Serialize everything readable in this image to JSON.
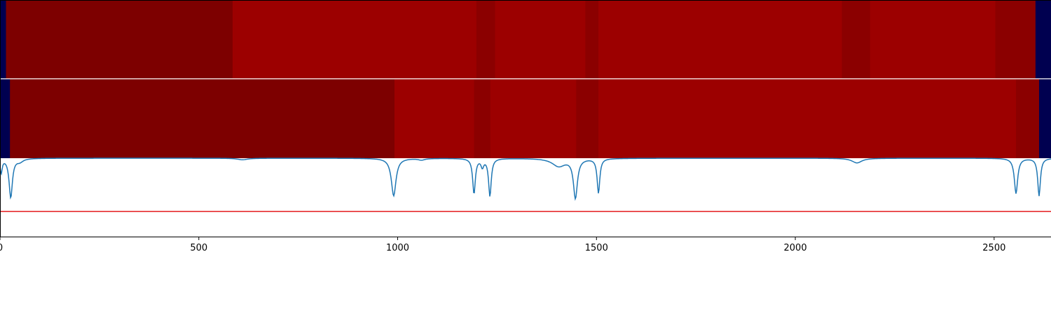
{
  "chart_data": [
    {
      "type": "heatmap",
      "segments": [
        {
          "x0": 0,
          "x1": 15,
          "level": "low"
        },
        {
          "x0": 15,
          "x1": 585,
          "level": "dark"
        },
        {
          "x0": 585,
          "x1": 1198,
          "level": "mid"
        },
        {
          "x0": 1198,
          "x1": 1245,
          "level": "darkmid"
        },
        {
          "x0": 1245,
          "x1": 1472,
          "level": "mid"
        },
        {
          "x0": 1472,
          "x1": 1505,
          "level": "darkmid"
        },
        {
          "x0": 1505,
          "x1": 2117,
          "level": "mid"
        },
        {
          "x0": 2117,
          "x1": 2188,
          "level": "darkmid"
        },
        {
          "x0": 2188,
          "x1": 2503,
          "level": "mid"
        },
        {
          "x0": 2503,
          "x1": 2604,
          "level": "darkmid"
        },
        {
          "x0": 2604,
          "x1": 2643,
          "level": "low"
        }
      ]
    },
    {
      "type": "heatmap",
      "segments": [
        {
          "x0": 0,
          "x1": 25,
          "level": "low"
        },
        {
          "x0": 25,
          "x1": 992,
          "level": "dark"
        },
        {
          "x0": 992,
          "x1": 1192,
          "level": "mid"
        },
        {
          "x0": 1192,
          "x1": 1233,
          "level": "darkmid"
        },
        {
          "x0": 1233,
          "x1": 1449,
          "level": "mid"
        },
        {
          "x0": 1449,
          "x1": 1505,
          "level": "darkmid"
        },
        {
          "x0": 1505,
          "x1": 2555,
          "level": "mid"
        },
        {
          "x0": 2555,
          "x1": 2613,
          "level": "darkmid"
        },
        {
          "x0": 2613,
          "x1": 2643,
          "level": "low"
        }
      ]
    },
    {
      "type": "line",
      "xlim": [
        0,
        2643
      ],
      "ylim": [
        0,
        1
      ],
      "grid": false,
      "x_ticks": [
        0,
        500,
        1000,
        1500,
        2000,
        2500
      ],
      "x_tick_labels": [
        "0",
        "500",
        "1000",
        "1500",
        "2000",
        "2500"
      ],
      "threshold": {
        "y": 0.32,
        "color": "#e41a1c"
      },
      "line_color": "#1f77b4",
      "baseline": 1.0,
      "dips": [
        {
          "x": 3,
          "depth": 0.18,
          "width": 6
        },
        {
          "x": 27,
          "depth": 0.5,
          "width": 10
        },
        {
          "x": 50,
          "depth": 0.04,
          "width": 20
        },
        {
          "x": 610,
          "depth": 0.02,
          "width": 30
        },
        {
          "x": 990,
          "depth": 0.48,
          "width": 14
        },
        {
          "x": 1060,
          "depth": 0.02,
          "width": 20
        },
        {
          "x": 1192,
          "depth": 0.45,
          "width": 8
        },
        {
          "x": 1213,
          "depth": 0.1,
          "width": 8
        },
        {
          "x": 1232,
          "depth": 0.48,
          "width": 8
        },
        {
          "x": 1405,
          "depth": 0.1,
          "width": 40
        },
        {
          "x": 1447,
          "depth": 0.5,
          "width": 12
        },
        {
          "x": 1505,
          "depth": 0.44,
          "width": 8
        },
        {
          "x": 2155,
          "depth": 0.06,
          "width": 30
        },
        {
          "x": 2555,
          "depth": 0.45,
          "width": 10
        },
        {
          "x": 2613,
          "depth": 0.48,
          "width": 8
        }
      ]
    }
  ],
  "colors": {
    "low": "#000050",
    "dark": "#7d0000",
    "darkmid": "#8b0000",
    "mid": "#9c0000",
    "separator": "#ffffff",
    "axis": "#000000"
  }
}
